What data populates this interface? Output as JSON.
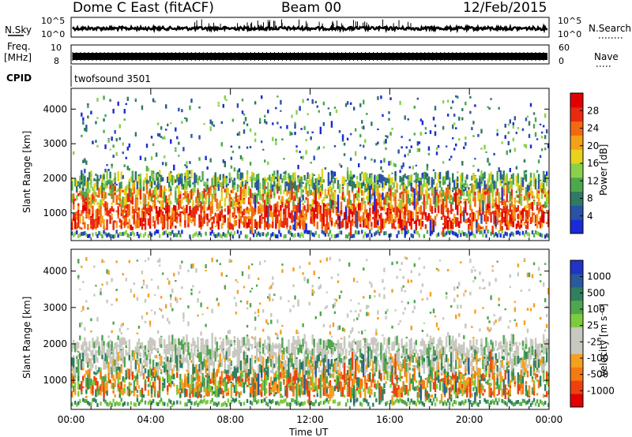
{
  "header": {
    "station": "Dome C East (fitACF)",
    "beam": "Beam 00",
    "date": "12/Feb/2015"
  },
  "strips": {
    "nsky_label": "N.Sky",
    "nsky_ticks": [
      "10^5",
      "10^0"
    ],
    "nsearch_label": "N.Search",
    "freq_label_line1": "Freq.",
    "freq_label_line2": "[MHz]",
    "freq_ticks": [
      "10",
      "8"
    ],
    "nave_label": "Nave",
    "nave_ticks": [
      "60",
      "0"
    ],
    "cpid_label": "CPID",
    "cpid_value": "twofsound 3501"
  },
  "chart_data": [
    {
      "type": "heatmap",
      "panel": "power",
      "ylabel": "Slant Range [km]",
      "xlabel": "",
      "yticks": [
        1000,
        2000,
        3000,
        4000
      ],
      "ylim": [
        200,
        4600
      ],
      "xlim": [
        0,
        24
      ],
      "xticks": [
        0,
        4,
        8,
        12,
        16,
        20,
        24
      ],
      "colorbar": {
        "label": "Power [dB]",
        "range": [
          0,
          32
        ],
        "ticks": [
          "4",
          "8",
          "12",
          "16",
          "20",
          "24",
          "28"
        ],
        "colors": [
          "#1a2bd6",
          "#2a52a8",
          "#2f7a63",
          "#4da84d",
          "#8ad14a",
          "#e8d21e",
          "#f5a01a",
          "#f26a10",
          "#e82a10",
          "#e00000"
        ]
      }
    },
    {
      "type": "heatmap",
      "panel": "velocity",
      "ylabel": "Slant Range [km]",
      "xlabel": "Time UT",
      "yticks": [
        1000,
        2000,
        3000,
        4000
      ],
      "ylim": [
        200,
        4600
      ],
      "xlim": [
        0,
        24
      ],
      "xticks": [
        0,
        4,
        8,
        12,
        16,
        20,
        24
      ],
      "xticklabels": [
        "00:00",
        "04:00",
        "08:00",
        "12:00",
        "16:00",
        "20:00",
        "00:00"
      ],
      "colorbar": {
        "label": "Velocity [m s⁻¹]",
        "ticks": [
          "1000",
          "500",
          "100",
          "25",
          "-25",
          "-100",
          "-500",
          "-1000"
        ],
        "colors": [
          "#2233c8",
          "#2a5a9a",
          "#2f7f60",
          "#4fa64d",
          "#7dcc3f",
          "#c8c8c0",
          "#c8c8c0",
          "#f5a020",
          "#f57a10",
          "#f04010",
          "#e00000"
        ]
      }
    }
  ]
}
